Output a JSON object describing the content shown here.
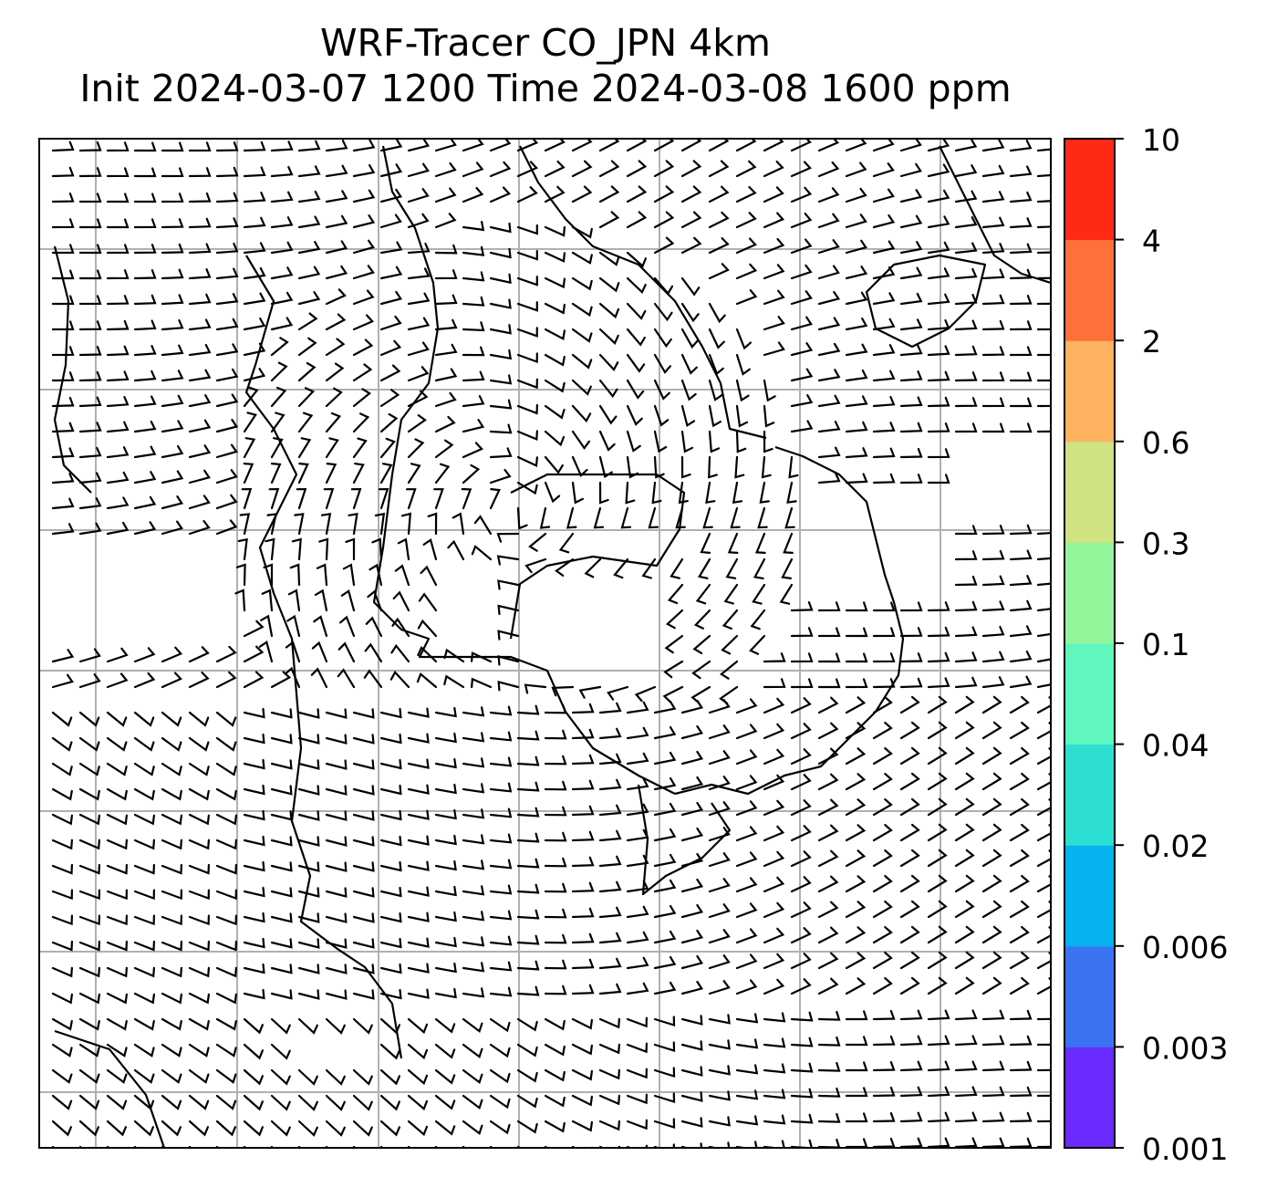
{
  "title": {
    "line1": "WRF-Tracer CO_JPN 4km",
    "line2": "Init 2024-03-07 1200 Time 2024-03-08 1600 ppm"
  },
  "colorbar": {
    "levels": [
      "0.001",
      "0.003",
      "0.006",
      "0.02",
      "0.04",
      "0.1",
      "0.3",
      "0.6",
      "2",
      "4",
      "10"
    ],
    "colors": [
      "#6a2bff",
      "#3a74f2",
      "#05b4ee",
      "#2ddfd2",
      "#5ff7bd",
      "#93f59a",
      "#cfe382",
      "#fdb25f",
      "#ff7139",
      "#ff2a16"
    ]
  },
  "map": {
    "grid": "on",
    "overlay": "wind-barbs",
    "calm_marker": "circle",
    "features": [
      "coastlines"
    ]
  }
}
